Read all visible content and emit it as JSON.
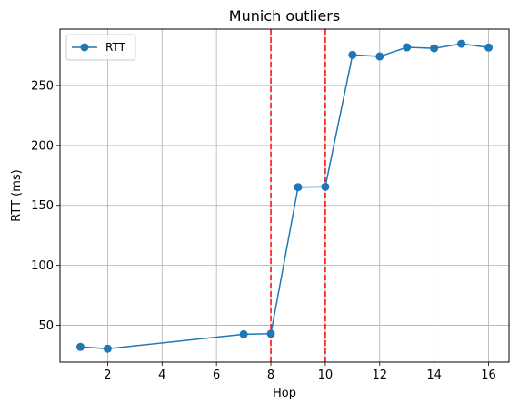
{
  "chart_data": {
    "type": "line",
    "title": "Munich outliers",
    "xlabel": "Hop",
    "ylabel": "RTT (ms)",
    "xlim": [
      0.25,
      16.75
    ],
    "ylim": [
      19.3,
      297.0
    ],
    "xticks": [
      2,
      4,
      6,
      8,
      10,
      12,
      14,
      16
    ],
    "yticks": [
      50,
      100,
      150,
      200,
      250
    ],
    "grid": true,
    "legend_position": "top-left",
    "series": [
      {
        "name": "RTT",
        "color": "#1f77b4",
        "marker": "circle",
        "x": [
          1,
          2,
          7,
          8,
          9,
          10,
          11,
          12,
          13,
          14,
          15,
          16
        ],
        "y": [
          32,
          30.5,
          42.5,
          43,
          165.2,
          165.5,
          275.5,
          274.2,
          281.8,
          281.0,
          284.8,
          281.6
        ]
      }
    ],
    "vlines": [
      {
        "x": 8,
        "color": "#ff0000",
        "style": "dashed"
      },
      {
        "x": 10,
        "color": "#ff0000",
        "style": "dashed"
      }
    ]
  }
}
